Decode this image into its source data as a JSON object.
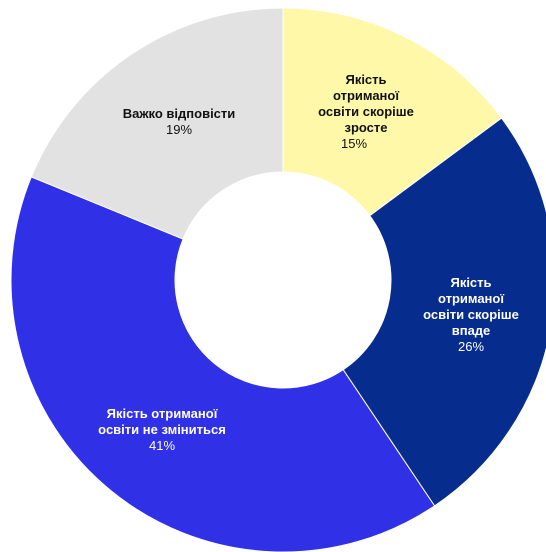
{
  "chart_data": {
    "type": "pie",
    "donut": true,
    "slices": [
      {
        "label": [
          "Якість",
          "отриманої",
          "освіти скоріше",
          "зросте"
        ],
        "value": 15,
        "value_label": "15%",
        "color": "#FFF8A8",
        "text_color": "#111111"
      },
      {
        "label": [
          "Якість",
          "отриманої",
          "освіти скоріше",
          "впаде"
        ],
        "value": 26,
        "value_label": "26%",
        "color": "#062C8E",
        "text_color": "#FFFFFF"
      },
      {
        "label": [
          "Якість отриманої",
          "освіти не зміниться"
        ],
        "value": 41,
        "value_label": "41%",
        "color": "#3030E6",
        "text_color": "#FFFFFF"
      },
      {
        "label": [
          "Важко відповісти"
        ],
        "value": 19,
        "value_label": "19%",
        "color": "#E2E2E2",
        "text_color": "#111111"
      }
    ]
  }
}
